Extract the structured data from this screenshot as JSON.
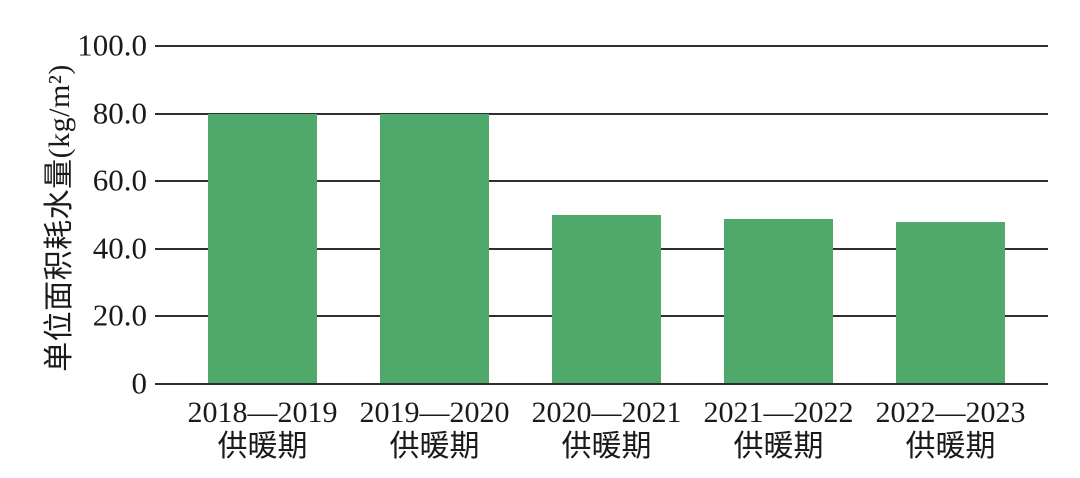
{
  "chart_data": {
    "type": "bar",
    "title": "",
    "categories": [
      "2018—2019",
      "2019—2020",
      "2020—2021",
      "2021—2022",
      "2022—2023"
    ],
    "category_sublabel": "供暖期",
    "values": [
      80.0,
      80.0,
      50.0,
      48.8,
      48.0
    ],
    "series": [
      {
        "name": "单位面积耗水量",
        "values": [
          80.0,
          80.0,
          50.0,
          48.8,
          48.0
        ]
      }
    ],
    "xlabel": "",
    "ylabel": "单位面积耗水量(kg/m²)",
    "ylim": [
      0,
      100
    ],
    "yticks": [
      {
        "value": 0,
        "label": "0"
      },
      {
        "value": 20,
        "label": "20.0"
      },
      {
        "value": 40,
        "label": "40.0"
      },
      {
        "value": 60,
        "label": "60.0"
      },
      {
        "value": 80,
        "label": "80.0"
      },
      {
        "value": 100,
        "label": "100.0"
      }
    ],
    "grid": true,
    "legend_position": "none",
    "colors": {
      "bar": "#4fa96a",
      "grid_line": "#2e2e2e",
      "text": "#1a1a1a",
      "background": "#ffffff"
    }
  }
}
